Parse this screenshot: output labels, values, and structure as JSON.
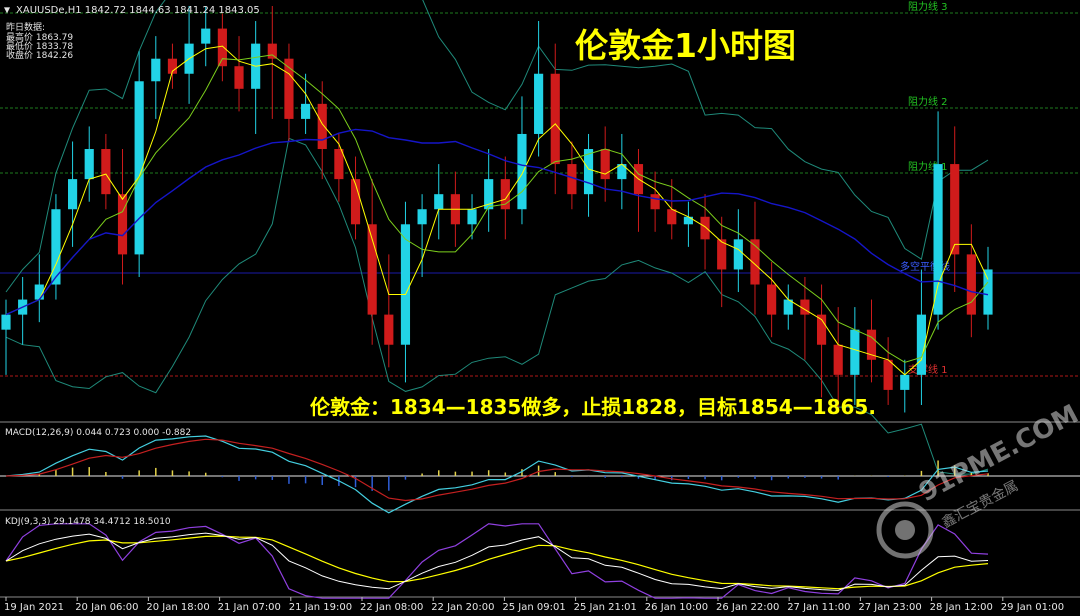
{
  "app": {
    "symbol_header": "XAUUSDe,H1  1842.72 1844.63 1841.24 1843.05",
    "info_box": {
      "title": "昨日数据:",
      "rows": [
        "最高价 1863.79",
        "最低价 1833.78",
        "收盘价 1842.26"
      ]
    },
    "chart_title": "伦敦金1小时图",
    "annotation": "伦敦金：1834—1835做多，止损1828，目标1854—1865.",
    "macd_label": "MACD(12,26,9) 0.044 0.723 0.000 -0.882",
    "kdj_label": "KDJ(9,3,3) 29.1478 34.4712 18.5010",
    "watermark_text": "91PME.COM",
    "watermark_sub": "鑫汇宝贵金属"
  },
  "colors": {
    "background": "#000000",
    "bull_candle": "#22d3e6",
    "bear_candle": "#d01b1b",
    "resistance_line": "#1e7a1e",
    "resistance_label": "#22c322",
    "support_line": "#b01818",
    "pivot_line": "#1a1aa8",
    "title": "#ffff00",
    "annotation": "#ffff00",
    "macd_histogram": "#e3d24a",
    "macd_signal": "#c42020",
    "macd_line": "#44cfe0",
    "kdj_k": "#ffffff",
    "kdj_d": "#ffff00",
    "kdj_j": "#9040e0"
  },
  "chart_data": {
    "type": "line",
    "series": [
      {
        "values": [
          1834,
          1836,
          1838,
          1848,
          1852,
          1856,
          1850,
          1842,
          1865,
          1868,
          1866,
          1870,
          1872,
          1867,
          1864,
          1870,
          1868,
          1860,
          1862,
          1856,
          1852,
          1846,
          1834,
          1830,
          1846,
          1848,
          1850,
          1846,
          1848,
          1852,
          1848,
          1858,
          1866,
          1854,
          1850,
          1856,
          1852,
          1854,
          1850,
          1848,
          1846,
          1847,
          1844,
          1840,
          1844,
          1838,
          1834,
          1836,
          1834,
          1830,
          1826,
          1832,
          1828,
          1824,
          1826,
          1834,
          1854,
          1842,
          1834,
          1840
        ]
      }
    ],
    "horizontal_levels": [
      {
        "label": "阻力线 3",
        "kind": "resistance"
      },
      {
        "label": "阻力线 2",
        "kind": "resistance"
      },
      {
        "label": "阻力线 1",
        "kind": "resistance"
      },
      {
        "label": "多空平衡线",
        "kind": "pivot"
      },
      {
        "label": "支撑线 1",
        "kind": "support"
      }
    ],
    "x_ticks": [
      "19 Jan 2021",
      "20 Jan 06:00",
      "20 Jan 18:00",
      "21 Jan 07:00",
      "21 Jan 19:00",
      "22 Jan 08:00",
      "22 Jan 20:00",
      "25 Jan 09:01",
      "25 Jan 21:01",
      "26 Jan 10:00",
      "26 Jan 22:00",
      "27 Jan 11:00",
      "27 Jan 23:00",
      "28 Jan 12:00",
      "29 Jan 01:00"
    ]
  }
}
